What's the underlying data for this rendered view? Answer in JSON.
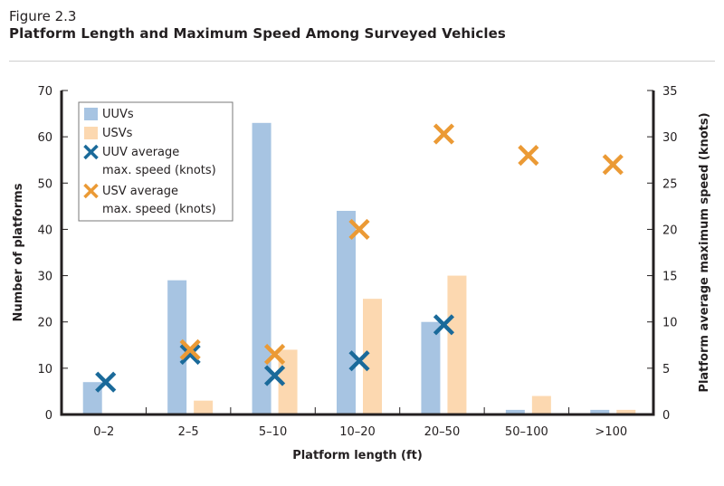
{
  "figure": {
    "label": "Figure 2.3",
    "title": "Platform Length and Maximum Speed Among Surveyed Vehicles"
  },
  "chart_data": {
    "type": "bar",
    "title": "Platform Length and Maximum Speed Among Surveyed Vehicles",
    "xlabel": "Platform length (ft)",
    "ylabel": "Number of platforms",
    "y2label": "Platform average maximum speed (knots)",
    "categories": [
      "0–2",
      "2–5",
      "5–10",
      "10–20",
      "20–50",
      "50–100",
      ">100"
    ],
    "ylim": [
      0,
      70
    ],
    "yticks": [
      0,
      10,
      20,
      30,
      40,
      50,
      60,
      70
    ],
    "y2lim": [
      0,
      35
    ],
    "y2ticks": [
      0,
      5,
      10,
      15,
      20,
      25,
      30,
      35
    ],
    "grid": false,
    "legend_position": "top-left",
    "series": [
      {
        "name": "UUVs",
        "kind": "bar",
        "axis": "left",
        "color": "#a7c4e2",
        "values": [
          7,
          29,
          63,
          44,
          20,
          1,
          1
        ]
      },
      {
        "name": "USVs",
        "kind": "bar",
        "axis": "left",
        "color": "#fcd8b0",
        "values": [
          0,
          3,
          14,
          25,
          30,
          4,
          1
        ]
      },
      {
        "name": "UUV average max. speed (knots)",
        "kind": "marker",
        "marker": "x",
        "axis": "right",
        "color": "#1a6a9a",
        "values": [
          3.5,
          6.5,
          4.2,
          5.8,
          9.7,
          null,
          null
        ]
      },
      {
        "name": "USV average max. speed (knots)",
        "kind": "marker",
        "marker": "x",
        "axis": "right",
        "color": "#eb9a35",
        "values": [
          null,
          7,
          6.5,
          20,
          30.3,
          28,
          27
        ]
      }
    ],
    "legend": [
      {
        "label_lines": [
          "UUVs"
        ],
        "swatch": "bar",
        "color": "#a7c4e2"
      },
      {
        "label_lines": [
          "USVs"
        ],
        "swatch": "bar",
        "color": "#fcd8b0"
      },
      {
        "label_lines": [
          "UUV average",
          "max. speed (knots)"
        ],
        "swatch": "x",
        "color": "#1a6a9a"
      },
      {
        "label_lines": [
          "USV average",
          "max. speed (knots)"
        ],
        "swatch": "x",
        "color": "#eb9a35"
      }
    ]
  }
}
